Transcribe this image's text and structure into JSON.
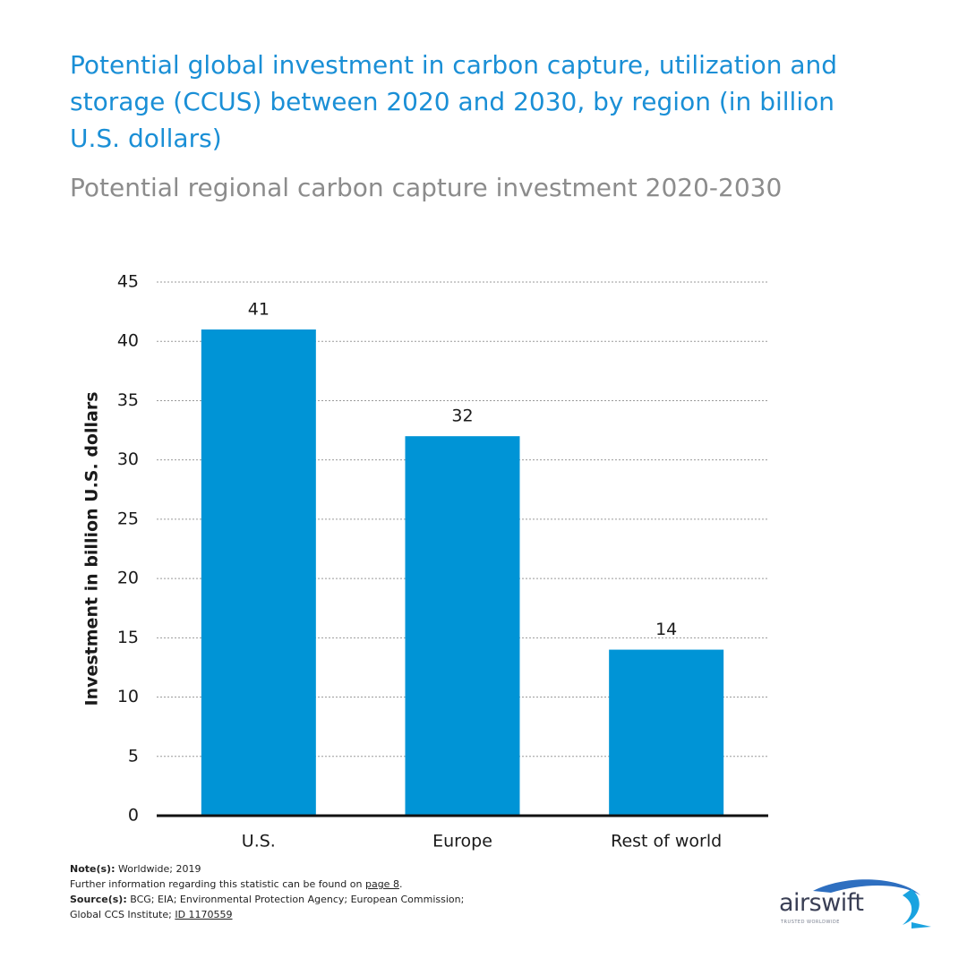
{
  "chart_data": {
    "type": "bar",
    "title": "Potential global investment in carbon capture, utilization and storage (CCUS) between 2020 and 2030, by region (in billion U.S. dollars)",
    "subtitle": "Potential regional carbon capture investment 2020-2030",
    "y_label": "Investment in billion U.S. dollars",
    "categories": [
      "U.S.",
      "Europe",
      "Rest of world"
    ],
    "values": [
      41,
      32,
      14
    ],
    "color": "#0094d6",
    "ylim": [
      0,
      45
    ],
    "yticks": [
      0,
      5,
      10,
      15,
      20,
      25,
      30,
      35,
      40,
      45
    ],
    "grid": true
  },
  "notes": {
    "note_label": "Note(s):",
    "note": "Worldwide; 2019",
    "info": "Further information regarding this statistic can be found on",
    "info_link": "page 8",
    "info_end": ".",
    "source_label": "Source(s):",
    "source": "BCG; EIA; Environmental Protection Agency; European Commission; Global CCS Institute;",
    "source_link": "ID 1170559"
  },
  "logo": {
    "name": "airswift",
    "tagline": "TRUSTED WORLDWIDE"
  }
}
